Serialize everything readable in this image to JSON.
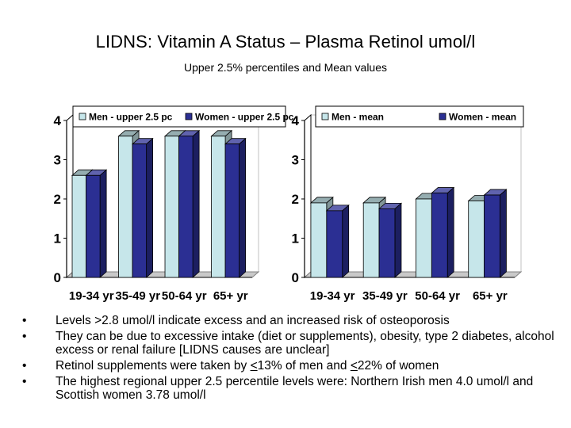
{
  "title": "LIDNS: Vitamin A Status – Plasma Retinol umol/l",
  "subtitle": "Upper 2.5% percentiles and Mean values",
  "colors": {
    "men": "#c6e6ea",
    "women": "#2b2f93",
    "floor": "#c9c9c9"
  },
  "chart_data": [
    {
      "type": "bar",
      "categories": [
        "19-34 yr",
        "35-49 yr",
        "50-64 yr",
        "65+ yr"
      ],
      "series": [
        {
          "name": "Men - upper 2.5 pc",
          "values": [
            2.6,
            3.6,
            3.6,
            3.6
          ]
        },
        {
          "name": "Women - upper 2.5 pc",
          "values": [
            2.6,
            3.4,
            3.6,
            3.4
          ]
        }
      ],
      "yticks": [
        "0",
        "1",
        "2",
        "3",
        "4"
      ],
      "ylim": [
        0,
        4
      ],
      "legend": "top",
      "grid": false
    },
    {
      "type": "bar",
      "categories": [
        "19-34 yr",
        "35-49 yr",
        "50-64 yr",
        "65+ yr"
      ],
      "series": [
        {
          "name": "Men - mean",
          "values": [
            1.9,
            1.9,
            2.0,
            1.95
          ]
        },
        {
          "name": "Women - mean",
          "values": [
            1.7,
            1.75,
            2.15,
            2.1
          ]
        }
      ],
      "yticks": [
        "0",
        "1",
        "2",
        "3",
        "4"
      ],
      "ylim": [
        0,
        4
      ],
      "legend": "top",
      "grid": false
    }
  ],
  "bullets": [
    {
      "parts": [
        {
          "text": "Levels >2.8 umol/l indicate excess and an increased risk of osteoporosis"
        }
      ]
    },
    {
      "parts": [
        {
          "text": "They can be due to excessive intake (diet or supplements), obesity, type 2 diabetes, alcohol excess or renal failure [LIDNS causes are unclear]"
        }
      ]
    },
    {
      "parts": [
        {
          "text": "Retinol supplements were taken by "
        },
        {
          "text": "<",
          "u": true
        },
        {
          "text": "13% of men and "
        },
        {
          "text": "<",
          "u": true
        },
        {
          "text": "22% of women"
        }
      ]
    },
    {
      "parts": [
        {
          "text": "The highest regional upper 2.5 percentile levels were: Northern Irish men 4.0 umol/l and Scottish women 3.78 umol/l"
        }
      ]
    }
  ],
  "bullet_glyph": "•"
}
